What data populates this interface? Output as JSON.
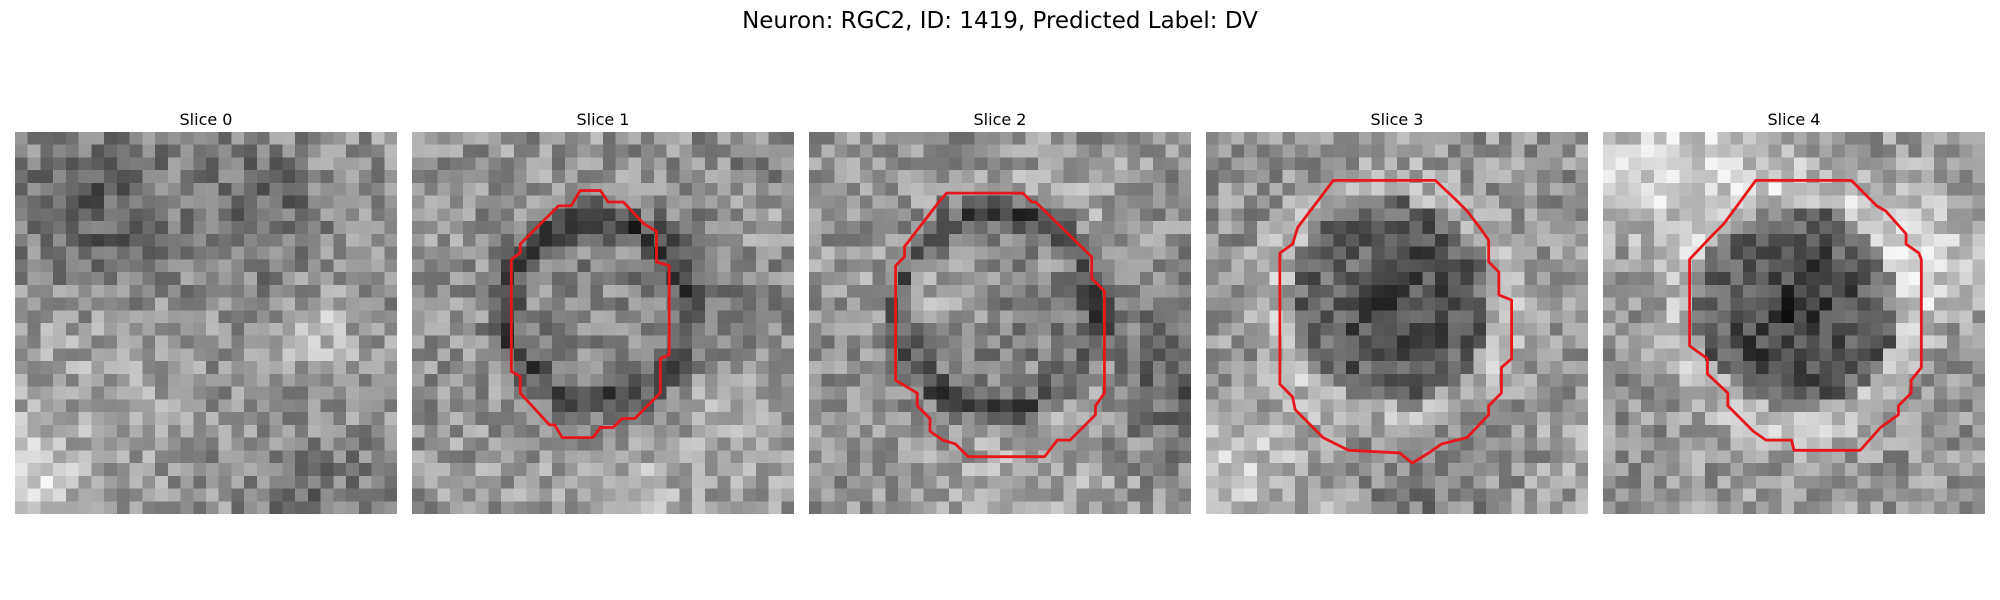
{
  "figure": {
    "title": "Neuron: RGC2, ID: 1419, Predicted Label: DV"
  },
  "panels": [
    {
      "title": "Slice 0",
      "has_contour": false
    },
    {
      "title": "Slice 1",
      "has_contour": true
    },
    {
      "title": "Slice 2",
      "has_contour": true
    },
    {
      "title": "Slice 3",
      "has_contour": true
    },
    {
      "title": "Slice 4",
      "has_contour": true
    }
  ],
  "colors": {
    "contour": "#e8161b",
    "background": "#ffffff"
  }
}
